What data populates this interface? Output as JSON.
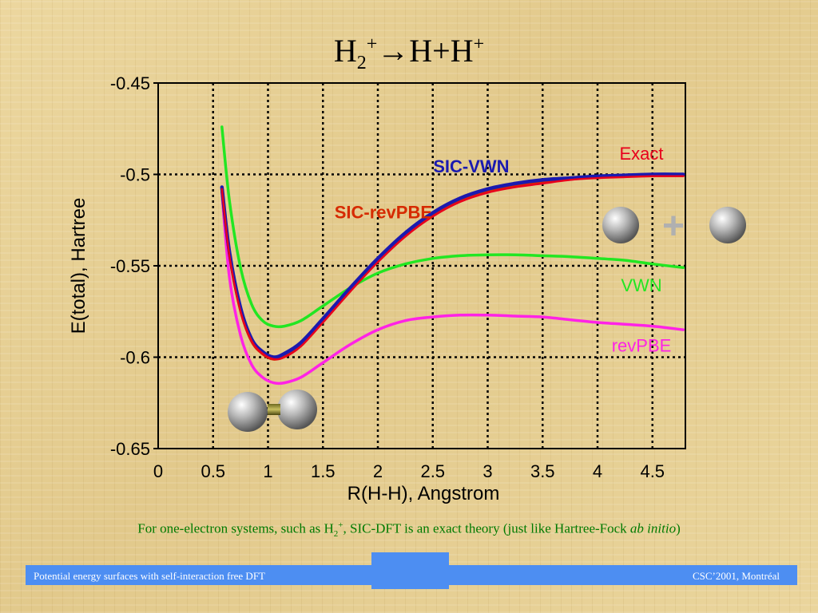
{
  "slide": {
    "title": {
      "main": "H",
      "sub": "2",
      "sup": "+",
      "arrow": "→",
      "rest": "H+H",
      "sup2": "+"
    },
    "caption": {
      "pre": "For one-electron systems, such as H",
      "sub": "2",
      "sup": "+",
      "mid": ", SIC-DFT is an exact theory (just like Hartree-Fock ",
      "italic": "ab initio",
      "post": ")"
    },
    "plus_sign": "+"
  },
  "footer": {
    "left": "Potential energy surfaces with self-interaction free DFT",
    "right": "CSC’2001, Montréal"
  },
  "colors": {
    "exact": "#e8001c",
    "sic_vwn": "#1a1ab0",
    "sic_revpbe": "#d62a00",
    "vwn": "#22e622",
    "revpbe": "#ff22e6",
    "footer": "#4d8ef2",
    "caption": "#007a00"
  },
  "chart_data": {
    "type": "line",
    "xlabel": "R(H-H), Angstrom",
    "ylabel": "E(total), Hartree",
    "xlim": [
      0,
      4.8
    ],
    "ylim": [
      -0.65,
      -0.45
    ],
    "xticks": [
      0,
      0.5,
      1,
      1.5,
      2,
      2.5,
      3,
      3.5,
      4,
      4.5
    ],
    "xtick_labels": [
      "0",
      "0.5",
      "1",
      "1.5",
      "2",
      "2.5",
      "3",
      "3.5",
      "4",
      "4.5"
    ],
    "yticks": [
      -0.45,
      -0.5,
      -0.55,
      -0.6,
      -0.65
    ],
    "ytick_labels": [
      "-0.45",
      "-0.5",
      "-0.55",
      "-0.6",
      "-0.65"
    ],
    "grid": true,
    "series": [
      {
        "name": "Exact",
        "key": "exact",
        "x": [
          0.58,
          0.65,
          0.75,
          0.85,
          0.95,
          1.05,
          1.15,
          1.3,
          1.5,
          1.75,
          2.0,
          2.25,
          2.5,
          2.75,
          3.0,
          3.25,
          3.5,
          3.75,
          4.0,
          4.25,
          4.5,
          4.78
        ],
        "y": [
          -0.508,
          -0.545,
          -0.575,
          -0.591,
          -0.598,
          -0.601,
          -0.6,
          -0.594,
          -0.581,
          -0.564,
          -0.548,
          -0.534,
          -0.523,
          -0.515,
          -0.51,
          -0.507,
          -0.505,
          -0.503,
          -0.502,
          -0.5015,
          -0.501,
          -0.501
        ]
      },
      {
        "name": "SIC-VWN",
        "key": "sic_vwn",
        "x": [
          0.58,
          0.65,
          0.75,
          0.85,
          0.95,
          1.05,
          1.15,
          1.3,
          1.5,
          1.75,
          2.0,
          2.25,
          2.5,
          2.75,
          3.0,
          3.25,
          3.5,
          3.75,
          4.0,
          4.25,
          4.5,
          4.78
        ],
        "y": [
          -0.507,
          -0.543,
          -0.573,
          -0.59,
          -0.597,
          -0.6,
          -0.598,
          -0.592,
          -0.579,
          -0.562,
          -0.546,
          -0.532,
          -0.521,
          -0.513,
          -0.508,
          -0.505,
          -0.503,
          -0.502,
          -0.501,
          -0.5005,
          -0.5,
          -0.5
        ]
      },
      {
        "name": "SIC-revPBE",
        "key": "sic_revpbe",
        "x": [
          0.58,
          0.65,
          0.75,
          0.85,
          0.95,
          1.05,
          1.15,
          1.3,
          1.5,
          1.75,
          2.0,
          2.25,
          2.5,
          2.75,
          3.0,
          3.25,
          3.5,
          3.75,
          4.0,
          4.25,
          4.5,
          4.78
        ],
        "y": [
          -0.508,
          -0.544,
          -0.574,
          -0.591,
          -0.598,
          -0.601,
          -0.599,
          -0.593,
          -0.58,
          -0.563,
          -0.547,
          -0.533,
          -0.522,
          -0.514,
          -0.509,
          -0.506,
          -0.504,
          -0.5025,
          -0.5015,
          -0.501,
          -0.5005,
          -0.5005
        ]
      },
      {
        "name": "VWN",
        "key": "vwn",
        "x": [
          0.58,
          0.65,
          0.75,
          0.85,
          0.95,
          1.05,
          1.15,
          1.3,
          1.5,
          1.75,
          2.0,
          2.25,
          2.5,
          2.75,
          3.0,
          3.25,
          3.5,
          3.75,
          4.0,
          4.25,
          4.5,
          4.78
        ],
        "y": [
          -0.474,
          -0.515,
          -0.551,
          -0.571,
          -0.58,
          -0.583,
          -0.583,
          -0.58,
          -0.572,
          -0.562,
          -0.554,
          -0.549,
          -0.546,
          -0.5445,
          -0.544,
          -0.544,
          -0.5445,
          -0.545,
          -0.546,
          -0.547,
          -0.549,
          -0.551
        ]
      },
      {
        "name": "revPBE",
        "key": "revpbe",
        "x": [
          0.58,
          0.65,
          0.75,
          0.85,
          0.95,
          1.05,
          1.15,
          1.3,
          1.5,
          1.75,
          2.0,
          2.25,
          2.5,
          2.75,
          3.0,
          3.25,
          3.5,
          3.75,
          4.0,
          4.25,
          4.5,
          4.78
        ],
        "y": [
          -0.51,
          -0.557,
          -0.588,
          -0.604,
          -0.611,
          -0.614,
          -0.614,
          -0.611,
          -0.603,
          -0.593,
          -0.585,
          -0.58,
          -0.578,
          -0.577,
          -0.577,
          -0.5775,
          -0.578,
          -0.5795,
          -0.581,
          -0.582,
          -0.583,
          -0.585
        ]
      }
    ],
    "labels": [
      {
        "text": "Exact",
        "key": "exact",
        "x": 4.4,
        "y": -0.492,
        "bold": false,
        "anchor": "middle"
      },
      {
        "text": "SIC-VWN",
        "key": "sic_vwn",
        "x": 2.85,
        "y": -0.499,
        "bold": true,
        "anchor": "middle"
      },
      {
        "text": "SIC-revPBE",
        "key": "sic_revpbe",
        "x": 2.05,
        "y": -0.524,
        "bold": true,
        "anchor": "middle"
      },
      {
        "text": "VWN",
        "key": "vwn",
        "x": 4.4,
        "y": -0.564,
        "bold": false,
        "anchor": "middle"
      },
      {
        "text": "revPBE",
        "key": "revpbe",
        "x": 4.4,
        "y": -0.597,
        "bold": false,
        "anchor": "middle"
      }
    ]
  }
}
